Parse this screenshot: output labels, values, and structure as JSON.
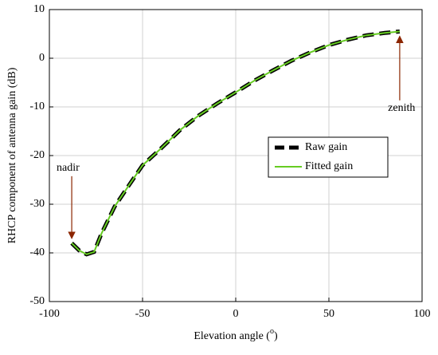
{
  "chart_data": {
    "type": "line",
    "xlabel": [
      "Elevation angle (",
      "o",
      ")"
    ],
    "ylabel": "RHCP component of antenna gain (dB)",
    "x": [
      -88,
      -84,
      -80,
      -76,
      -72,
      -65,
      -58,
      -50,
      -40,
      -30,
      -20,
      -10,
      0,
      10,
      20,
      30,
      40,
      50,
      60,
      70,
      80,
      88
    ],
    "series": [
      {
        "name": "Raw gain",
        "color": "#000000",
        "dashed": true,
        "values": [
          -38,
          -39.5,
          -40.3,
          -39.8,
          -36,
          -30.5,
          -26.5,
          -22,
          -18.5,
          -14.8,
          -11.8,
          -9.3,
          -7,
          -4.6,
          -2.5,
          -0.5,
          1.2,
          2.7,
          3.8,
          4.7,
          5.2,
          5.5
        ]
      },
      {
        "name": "Fitted gain",
        "color": "#66cc22",
        "dashed": false,
        "values": [
          -38,
          -39.5,
          -40.3,
          -39.8,
          -36,
          -30.5,
          -26.5,
          -22,
          -18.5,
          -14.8,
          -11.8,
          -9.3,
          -7,
          -4.6,
          -2.5,
          -0.5,
          1.2,
          2.7,
          3.8,
          4.7,
          5.2,
          5.5
        ]
      }
    ],
    "xlim": [
      -100,
      100
    ],
    "xticks": [
      -100,
      -50,
      0,
      50,
      100
    ],
    "ylim": [
      -50,
      10
    ],
    "yticks": [
      -50,
      -40,
      -30,
      -20,
      -10,
      0,
      10
    ],
    "grid": true,
    "legend": "right",
    "annotations": [
      {
        "text": "nadir",
        "x": -90,
        "y": -22.6,
        "arrow_to": [
          -88,
          -37
        ]
      },
      {
        "text": "zenith",
        "x": 89,
        "y": -10.3,
        "arrow_to": [
          88,
          4.5
        ]
      }
    ]
  }
}
